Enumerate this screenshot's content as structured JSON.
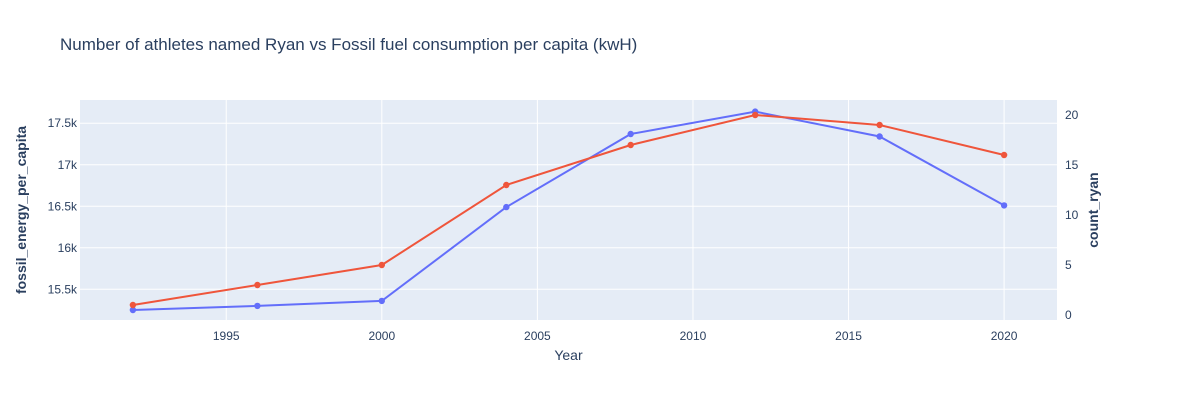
{
  "chart_data": {
    "type": "line",
    "title": "Number of athletes named Ryan vs Fossil fuel consumption per capita (kwH)",
    "xlabel": "Year",
    "ylabel": "fossil_energy_per_capita",
    "y2label": "count_ryan",
    "x": [
      1992,
      1996,
      2000,
      2004,
      2008,
      2012,
      2016,
      2020
    ],
    "xlim": [
      1990.3,
      2021.7
    ],
    "ylim": [
      15130,
      17780
    ],
    "y2lim": [
      -0.5,
      21.5
    ],
    "xticks": [
      1995,
      2000,
      2005,
      2010,
      2015,
      2020
    ],
    "xtick_labels": [
      "1995",
      "2000",
      "2005",
      "2010",
      "2015",
      "2020"
    ],
    "yticks": [
      15500,
      16000,
      16500,
      17000,
      17500
    ],
    "ytick_labels": [
      "15.5k",
      "16k",
      "16.5k",
      "17k",
      "17.5k"
    ],
    "y2ticks": [
      0,
      5,
      10,
      15,
      20
    ],
    "y2tick_labels": [
      "0",
      "5",
      "10",
      "15",
      "20"
    ],
    "grid": true,
    "series": [
      {
        "axis": "y",
        "color": "#636efa",
        "values": [
          15250,
          15300,
          15360,
          16490,
          17370,
          17640,
          17340,
          16510
        ]
      },
      {
        "axis": "y2",
        "color": "#ef553b",
        "values": [
          1,
          3,
          5,
          13,
          17,
          20,
          19,
          16
        ]
      }
    ],
    "colors": {
      "plot_bg": "#e5ecf6",
      "paper_bg": "#ffffff",
      "text": "#2a3f5f"
    }
  }
}
